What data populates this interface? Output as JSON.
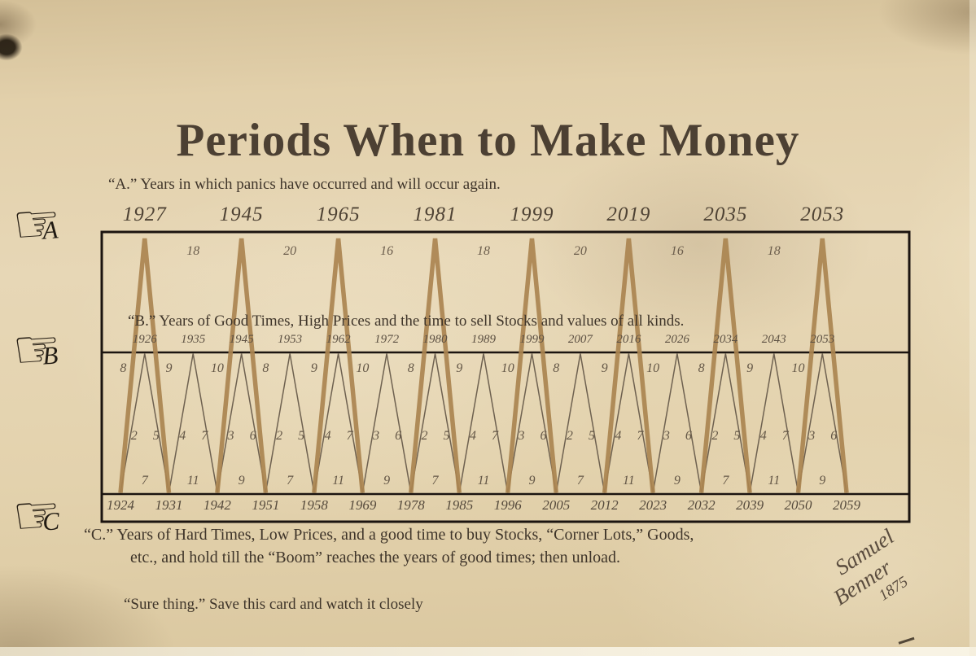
{
  "title": "Periods When to Make Money",
  "hand_icon_glyph": "☞",
  "sections": {
    "a": {
      "label": "A",
      "description": "“A.” Years in which panics have occurred and will occur again.",
      "years": [
        "1927",
        "1945",
        "1965",
        "1981",
        "1999",
        "2019",
        "2035",
        "2053"
      ],
      "intervals": [
        "18",
        "20",
        "16",
        "18",
        "20",
        "16",
        "18"
      ]
    },
    "b": {
      "label": "B",
      "description": "“B.” Years of Good Times, High Prices and the time to sell Stocks and values of all kinds.",
      "years": [
        "1926",
        "1935",
        "1945",
        "1953",
        "1962",
        "1972",
        "1980",
        "1989",
        "1999",
        "2007",
        "2016",
        "2026",
        "2034",
        "2043",
        "2053"
      ],
      "top_numbers": [
        "8",
        "9",
        "10",
        "8",
        "9",
        "10",
        "8",
        "9",
        "10",
        "8",
        "9",
        "10",
        "8",
        "9",
        "10"
      ],
      "pairs": [
        [
          "2",
          "5"
        ],
        [
          "4",
          "7"
        ],
        [
          "3",
          "6"
        ],
        [
          "2",
          "5"
        ],
        [
          "4",
          "7"
        ],
        [
          "3",
          "6"
        ],
        [
          "2",
          "5"
        ],
        [
          "4",
          "7"
        ],
        [
          "3",
          "6"
        ],
        [
          "2",
          "5"
        ],
        [
          "4",
          "7"
        ],
        [
          "3",
          "6"
        ],
        [
          "2",
          "5"
        ],
        [
          "4",
          "7"
        ],
        [
          "3",
          "6"
        ]
      ]
    },
    "c": {
      "label": "C",
      "description_line1": "“C.”   Years of Hard Times, Low Prices, and a good time to buy Stocks, “Corner Lots,” Goods,",
      "description_line2": "etc., and hold till  the “Boom” reaches the years of good times; then unload.",
      "years": [
        "1924",
        "1931",
        "1942",
        "1951",
        "1958",
        "1969",
        "1978",
        "1985",
        "1996",
        "2005",
        "2012",
        "2023",
        "2032",
        "2039",
        "2050",
        "2059"
      ],
      "intervals": [
        "7",
        "11",
        "9",
        "7",
        "11",
        "9",
        "7",
        "11",
        "9",
        "7",
        "11",
        "9",
        "7",
        "11",
        "9"
      ]
    }
  },
  "footer": {
    "note": "“Sure thing.” Save this card and watch it closely"
  },
  "signature": {
    "first_name": "Samuel",
    "last_name": "Benner",
    "year": "1875"
  },
  "colors": {
    "paper": "#e3d2ae",
    "ink": "#4c4033",
    "major_line": "#aa8450",
    "minor_line": "#6e6150",
    "border": "#1b1410"
  },
  "chart_data": {
    "type": "line",
    "title": "Periods When to Make Money",
    "x_range": [
      1924,
      2059
    ],
    "grid": false,
    "legend_position": "none",
    "series": [
      {
        "name": "A. Years in which panics have occurred and will occur again (major cycle peaks)",
        "peak_years": [
          1927,
          1945,
          1965,
          1981,
          1999,
          2019,
          2035,
          2053
        ],
        "intervals_between_peaks": [
          18,
          20,
          16,
          18,
          20,
          16,
          18
        ]
      },
      {
        "name": "B. Years of good times, high prices, time to sell stocks (minor cycle peaks)",
        "peak_years": [
          1926,
          1935,
          1945,
          1953,
          1962,
          1972,
          1980,
          1989,
          1999,
          2007,
          2016,
          2026,
          2034,
          2043,
          2053
        ],
        "interval_labels": [
          8,
          9,
          10,
          8,
          9,
          10,
          8,
          9,
          10,
          8,
          9,
          10,
          8,
          9,
          10
        ],
        "rise_fall_years": [
          [
            2,
            5
          ],
          [
            4,
            7
          ],
          [
            3,
            6
          ],
          [
            2,
            5
          ],
          [
            4,
            7
          ],
          [
            3,
            6
          ],
          [
            2,
            5
          ],
          [
            4,
            7
          ],
          [
            3,
            6
          ],
          [
            2,
            5
          ],
          [
            4,
            7
          ],
          [
            3,
            6
          ],
          [
            2,
            5
          ],
          [
            4,
            7
          ],
          [
            3,
            6
          ]
        ]
      },
      {
        "name": "C. Years of hard times, low prices, good time to buy (cycle lows)",
        "low_years": [
          1924,
          1931,
          1942,
          1951,
          1958,
          1969,
          1978,
          1985,
          1996,
          2005,
          2012,
          2023,
          2032,
          2039,
          2050,
          2059
        ],
        "intervals_between_lows": [
          7,
          11,
          9,
          7,
          11,
          9,
          7,
          11,
          9,
          7,
          11,
          9,
          7,
          11,
          9
        ]
      }
    ]
  }
}
